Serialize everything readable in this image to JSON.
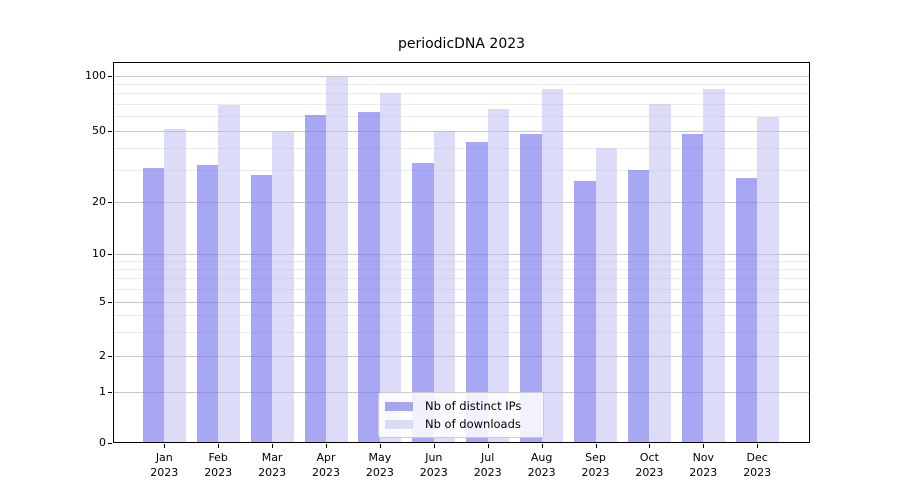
{
  "chart_data": {
    "type": "bar",
    "title": "periodicDNA 2023",
    "year": "2023",
    "categories": [
      "Jan",
      "Feb",
      "Mar",
      "Apr",
      "May",
      "Jun",
      "Jul",
      "Aug",
      "Sep",
      "Oct",
      "Nov",
      "Dec"
    ],
    "series": [
      {
        "name": "Nb of distinct IPs",
        "color": "rgba(122,122,238,0.66)",
        "values": [
          31,
          32,
          28,
          61,
          63,
          33,
          43,
          48,
          26,
          30,
          48,
          27
        ]
      },
      {
        "name": "Nb of downloads",
        "color": "rgba(187,187,243,0.52)",
        "values": [
          51,
          69,
          49,
          98,
          80,
          50,
          66,
          84,
          40,
          70,
          84,
          59
        ]
      }
    ],
    "y_axis": {
      "scale": "log-like",
      "ticks": [
        0,
        1,
        2,
        5,
        10,
        20,
        50,
        100
      ],
      "minor_ticks": [
        3,
        4,
        6,
        7,
        8,
        9,
        30,
        40,
        60,
        70,
        80,
        90
      ],
      "ylim": [
        0,
        118
      ]
    },
    "legend": {
      "position": "lower center"
    },
    "grid": true,
    "colors": {
      "bar_dark": "#a9a9f4",
      "bar_light": "#dadaf9",
      "grid_major": "#c6c6c6",
      "grid_minor": "#ebebeb"
    }
  }
}
